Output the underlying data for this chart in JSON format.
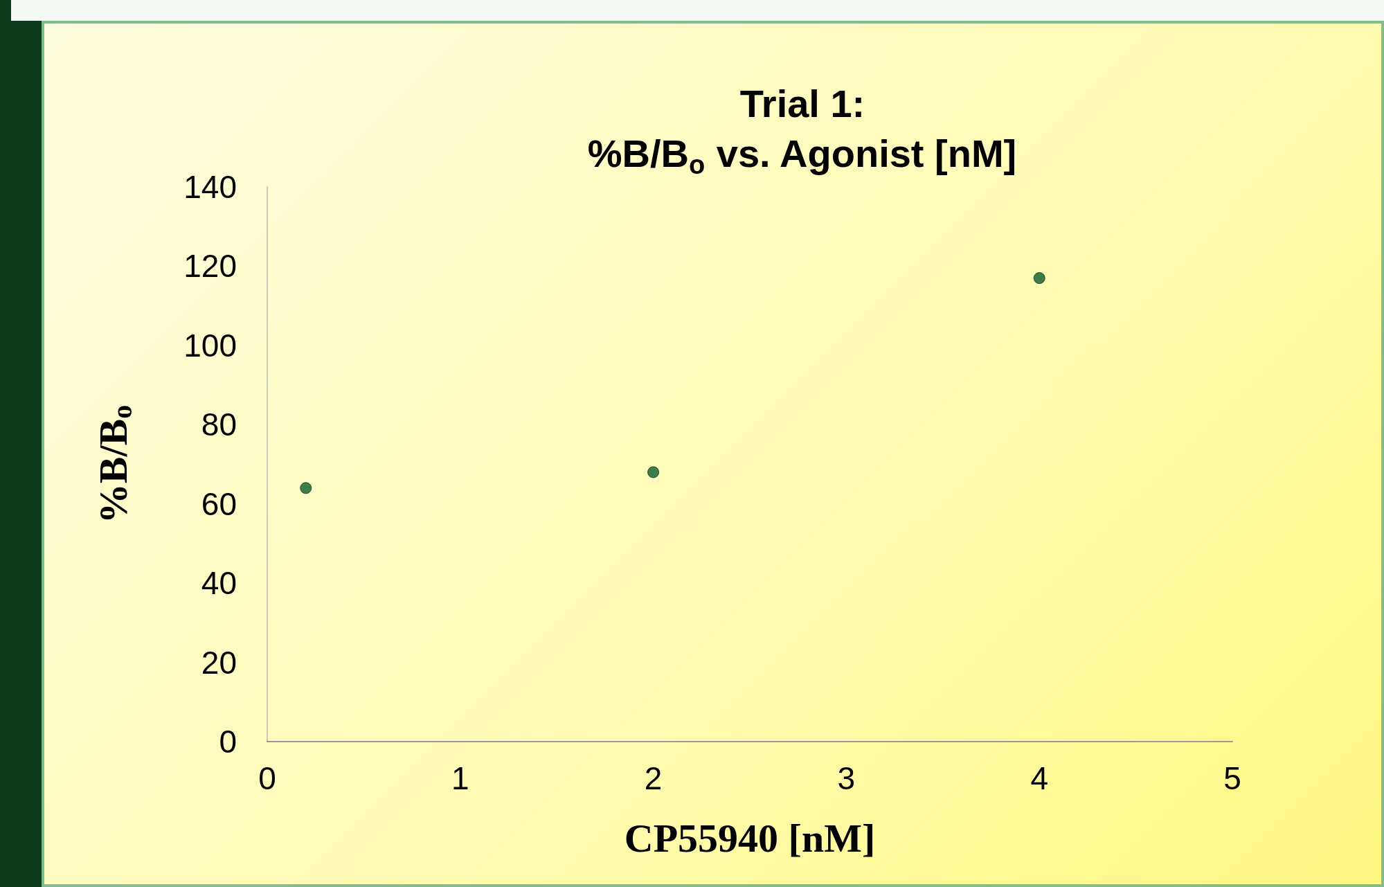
{
  "chart_data": {
    "type": "scatter",
    "title": "Trial 1:\n%B/B$_{o}$ vs. Agonist [nM]",
    "xlabel": "CP55940 [nM]",
    "ylabel": "%B/B$_{o}$",
    "x": [
      0.2,
      2,
      4
    ],
    "values": [
      64,
      68,
      117
    ],
    "color": "#0d5b2c",
    "marker": "circle",
    "xlim": [
      0,
      5
    ],
    "xticks": [
      0,
      1,
      2,
      3,
      4,
      5
    ],
    "ylim": [
      0,
      140
    ],
    "yticks": [
      0,
      20,
      40,
      60,
      80,
      100,
      120,
      140
    ]
  }
}
